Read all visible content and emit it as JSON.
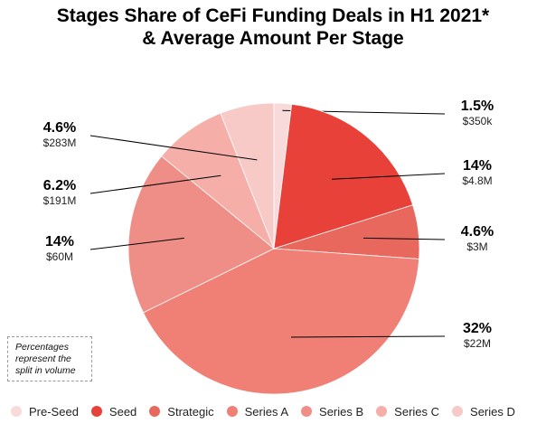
{
  "title_line1": "Stages Share of CeFi Funding Deals in H1 2021*",
  "title_line2": "& Average Amount Per Stage",
  "note": [
    "Percentages",
    "represent the",
    "split in volume"
  ],
  "chart_data": {
    "type": "pie",
    "title": "Stages Share of CeFi Funding Deals in H1 2021* & Average Amount Per Stage",
    "categories": [
      "Pre-Seed",
      "Seed",
      "Strategic",
      "Series A",
      "Series B",
      "Series C",
      "Series D"
    ],
    "values": [
      1.5,
      14,
      4.6,
      32,
      14,
      6.2,
      4.6
    ],
    "value_labels": [
      "1.5%",
      "14%",
      "4.6%",
      "32%",
      "14%",
      "6.2%",
      "4.6%"
    ],
    "average_amounts": [
      "$350k",
      "$4.8M",
      "$3M",
      "$22M",
      "$60M",
      "$191M",
      "$283M"
    ],
    "colors": [
      "#f9dada",
      "#e8413a",
      "#e8685d",
      "#f07f75",
      "#ef8e86",
      "#f5aea8",
      "#f7cac8"
    ],
    "legend_position": "bottom"
  }
}
